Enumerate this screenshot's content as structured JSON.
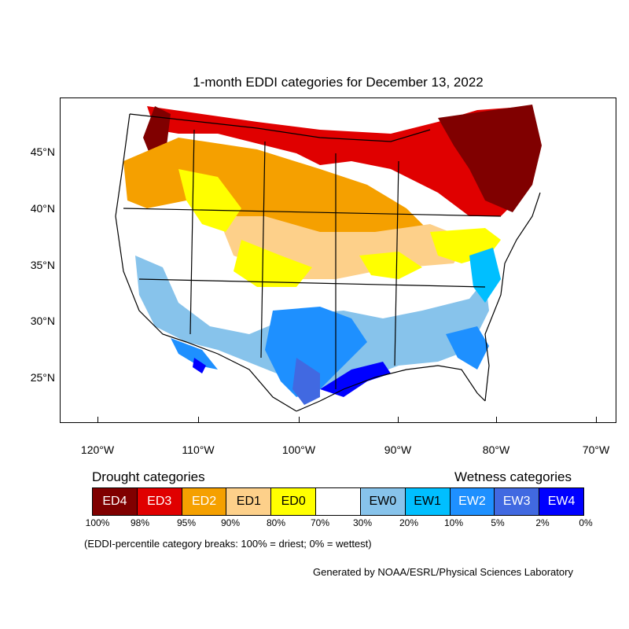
{
  "map": {
    "title": "1-month EDDI categories for December 13, 2022",
    "lat_labels": [
      "45°N",
      "40°N",
      "35°N",
      "30°N",
      "25°N"
    ],
    "lon_labels": [
      "120°W",
      "110°W",
      "100°W",
      "90°W",
      "80°W",
      "70°W"
    ]
  },
  "legend": {
    "drought_heading": "Drought categories",
    "wetness_heading": "Wetness categories",
    "categories": [
      {
        "label": "ED4",
        "color": "#800000",
        "text_color": "#ffffff"
      },
      {
        "label": "ED3",
        "color": "#e00000",
        "text_color": "#ffffff"
      },
      {
        "label": "ED2",
        "color": "#f5a000",
        "text_color": "#ffffff"
      },
      {
        "label": "ED1",
        "color": "#fdd08a",
        "text_color": "#000000"
      },
      {
        "label": "ED0",
        "color": "#ffff00",
        "text_color": "#000000"
      },
      {
        "label": "",
        "color": "#ffffff",
        "text_color": "#000000"
      },
      {
        "label": "EW0",
        "color": "#87c3eb",
        "text_color": "#000000"
      },
      {
        "label": "EW1",
        "color": "#00bfff",
        "text_color": "#000000"
      },
      {
        "label": "EW2",
        "color": "#1e90ff",
        "text_color": "#ffffff"
      },
      {
        "label": "EW3",
        "color": "#4169e1",
        "text_color": "#ffffff"
      },
      {
        "label": "EW4",
        "color": "#0000ff",
        "text_color": "#ffffff"
      }
    ],
    "breaks": [
      "100%",
      "98%",
      "95%",
      "90%",
      "80%",
      "70%",
      "30%",
      "20%",
      "10%",
      "5%",
      "2%",
      "0%"
    ],
    "note": "(EDDI-percentile category breaks: 100% = driest; 0% = wettest)"
  },
  "credit": "Generated by NOAA/ESRL/Physical Sciences Laboratory"
}
